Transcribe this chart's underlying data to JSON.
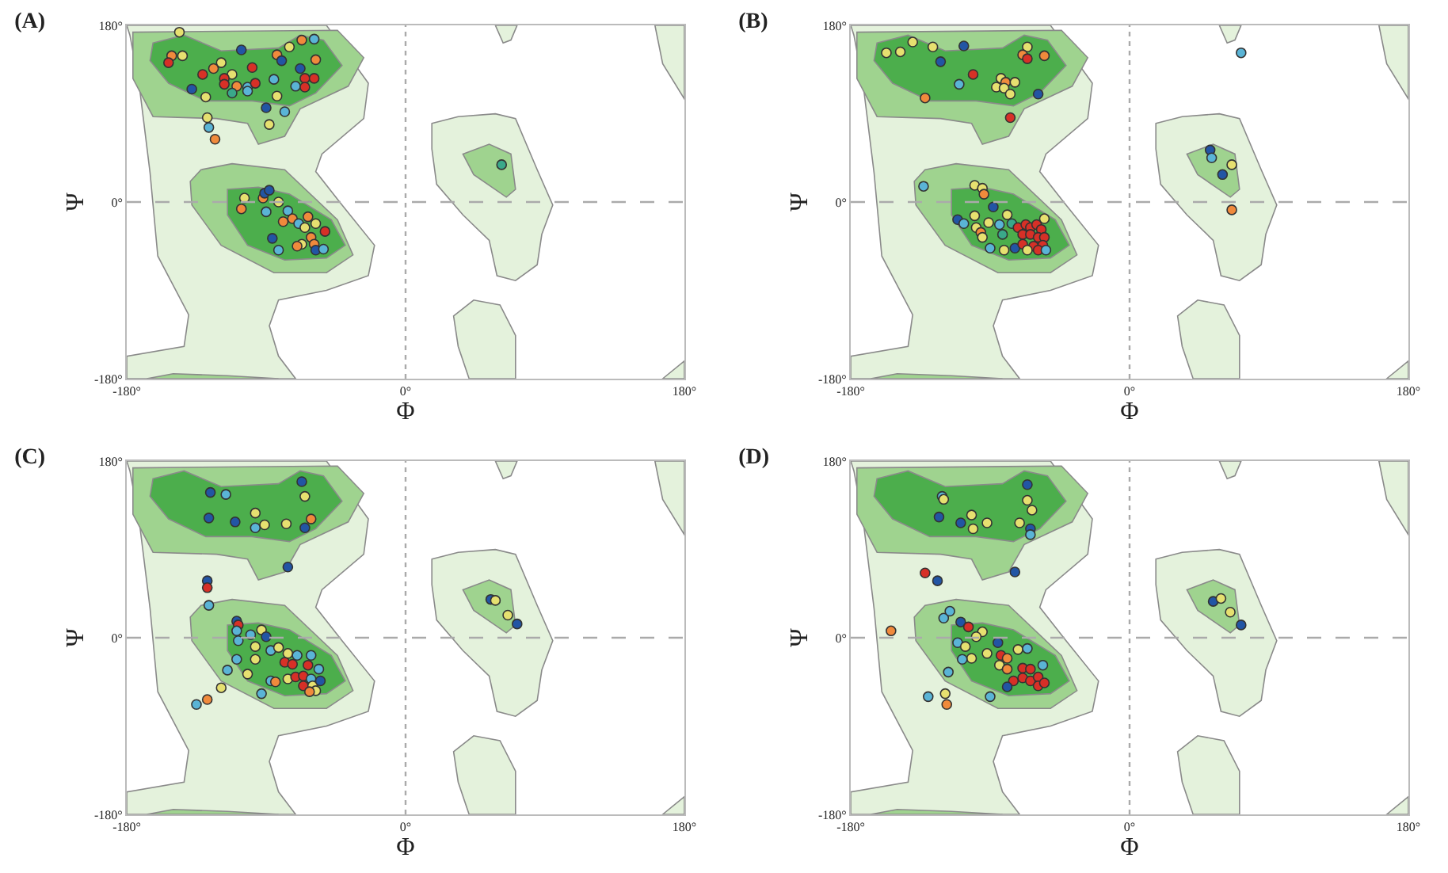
{
  "chart_data": [
    {
      "type": "scatter",
      "title": "(A)",
      "xlabel": "Φ",
      "ylabel": "Ψ",
      "marker": "circle",
      "xlim": [
        -180,
        180
      ],
      "ylim": [
        -180,
        180
      ],
      "xticks": [
        {
          "value": -180,
          "label": "-180°"
        },
        {
          "value": 0,
          "label": "0°"
        },
        {
          "value": 180,
          "label": "180°"
        }
      ],
      "yticks": [
        {
          "value": -180,
          "label": "-180°"
        },
        {
          "value": 0,
          "label": "0°"
        },
        {
          "value": 180,
          "label": "180°"
        }
      ],
      "ref_lines": [
        {
          "axis": "x",
          "value": 0,
          "line_style": "dotted",
          "color": "#aaaaaa"
        },
        {
          "axis": "y",
          "value": 0,
          "line_style": "dashed",
          "color": "#aaaaaa"
        }
      ],
      "x": [
        -146,
        -151,
        -144,
        -153,
        -106,
        -83,
        -80,
        -67,
        -59,
        -75,
        -58,
        -99,
        -119,
        -124,
        -131,
        -112,
        -117,
        -117,
        -109,
        -102,
        -97,
        -112,
        -102,
        -138,
        -129,
        -85,
        -68,
        -65,
        -59,
        -71,
        -65,
        -83,
        -90,
        -78,
        -128,
        -127,
        -123,
        -88,
        62,
        -104,
        -106,
        -92,
        -91,
        -88,
        -90,
        -82,
        -76,
        -79,
        -73,
        -69,
        -63,
        -58,
        -52,
        -65,
        -61,
        -67,
        -59,
        -58,
        -53,
        -86,
        -82,
        -70
      ],
      "values": [
        173,
        149,
        149,
        142,
        155,
        150,
        144,
        165,
        166,
        158,
        145,
        137,
        142,
        136,
        130,
        130,
        126,
        120,
        118,
        117,
        121,
        111,
        113,
        115,
        107,
        125,
        136,
        126,
        126,
        118,
        117,
        108,
        96,
        92,
        86,
        76,
        64,
        79,
        38,
        4,
        -7,
        4,
        9,
        12,
        -10,
        0,
        -9,
        -20,
        -17,
        -22,
        -15,
        -22,
        -30,
        -26,
        -36,
        -43,
        -43,
        -49,
        -48,
        -37,
        -49,
        -45
      ],
      "colors": [
        "#e6e070",
        "#f08a3c",
        "#e6e070",
        "#d73027",
        "#2255a4",
        "#f08a3c",
        "#2255a4",
        "#f08a3c",
        "#5ab4d6",
        "#e6e070",
        "#f08a3c",
        "#d73027",
        "#e6e070",
        "#f08a3c",
        "#d73027",
        "#e6e070",
        "#d73027",
        "#d73027",
        "#f08a3c",
        "#5ab4d6",
        "#d73027",
        "#3aa88a",
        "#5ab4d6",
        "#2255a4",
        "#e6e070",
        "#5ab4d6",
        "#2255a4",
        "#d73027",
        "#d73027",
        "#5ab4d6",
        "#d73027",
        "#e6e070",
        "#2255a4",
        "#5ab4d6",
        "#e6e070",
        "#5ab4d6",
        "#f08a3c",
        "#e6e070",
        "#3aa88a",
        "#e6e070",
        "#f08a3c",
        "#f08a3c",
        "#2255a4",
        "#2255a4",
        "#5ab4d6",
        "#e6e070",
        "#5ab4d6",
        "#f08a3c",
        "#f08a3c",
        "#5ab4d6",
        "#f08a3c",
        "#e6e070",
        "#d73027",
        "#e6e070",
        "#f08a3c",
        "#e6e070",
        "#f08a3c",
        "#2255a4",
        "#5ab4d6",
        "#2255a4",
        "#5ab4d6",
        "#f08a3c"
      ]
    },
    {
      "type": "scatter",
      "title": "(B)",
      "xlabel": "Φ",
      "ylabel": "Ψ",
      "marker": "circle",
      "xlim": [
        -180,
        180
      ],
      "ylim": [
        -180,
        180
      ],
      "xticks": [
        {
          "value": -180,
          "label": "-180°"
        },
        {
          "value": 0,
          "label": "0°"
        },
        {
          "value": 180,
          "label": "180°"
        }
      ],
      "yticks": [
        {
          "value": -180,
          "label": "-180°"
        },
        {
          "value": 0,
          "label": "0°"
        },
        {
          "value": 180,
          "label": "180°"
        }
      ],
      "ref_lines": [
        {
          "axis": "x",
          "value": 0,
          "line_style": "dotted",
          "color": "#aaaaaa"
        },
        {
          "axis": "y",
          "value": 0,
          "line_style": "dashed",
          "color": "#aaaaaa"
        }
      ],
      "x": [
        -157,
        -148,
        -140,
        -127,
        -107,
        -122,
        -101,
        -110,
        -132,
        -66,
        -69,
        -66,
        -55,
        -83,
        -80,
        -74,
        -86,
        -81,
        -77,
        -59,
        -77,
        72,
        52,
        53,
        66,
        60,
        66,
        -133,
        -100,
        -95,
        -94,
        -88,
        -111,
        -107,
        -100,
        -99,
        -91,
        -84,
        -79,
        -76,
        -96,
        -95,
        -90,
        -82,
        -81,
        -74,
        -72,
        -67,
        -64,
        -60,
        -57,
        -69,
        -64,
        -59,
        -55,
        -69,
        -62,
        -56,
        -59,
        -54,
        -66,
        -55
      ],
      "values": [
        152,
        153,
        163,
        158,
        159,
        143,
        130,
        120,
        106,
        158,
        150,
        146,
        149,
        126,
        122,
        122,
        117,
        116,
        110,
        110,
        86,
        152,
        53,
        45,
        38,
        28,
        -8,
        16,
        17,
        14,
        8,
        -5,
        -18,
        -22,
        -14,
        -26,
        -21,
        -23,
        -13,
        -22,
        -31,
        -36,
        -47,
        -33,
        -49,
        -47,
        -26,
        -23,
        -26,
        -23,
        -28,
        -33,
        -33,
        -36,
        -36,
        -43,
        -45,
        -44,
        -49,
        -49,
        -49,
        -17
      ],
      "colors": [
        "#e6e070",
        "#e6e070",
        "#e6e070",
        "#e6e070",
        "#2255a4",
        "#2255a4",
        "#d73027",
        "#5ab4d6",
        "#f08a3c",
        "#e6e070",
        "#f08a3c",
        "#d73027",
        "#f08a3c",
        "#e6e070",
        "#f08a3c",
        "#e6e070",
        "#e6e070",
        "#e6e070",
        "#e6e070",
        "#2255a4",
        "#d73027",
        "#5ab4d6",
        "#2255a4",
        "#5ab4d6",
        "#e6e070",
        "#2255a4",
        "#f08a3c",
        "#5ab4d6",
        "#e6e070",
        "#e6e070",
        "#f08a3c",
        "#2255a4",
        "#2255a4",
        "#5ab4d6",
        "#e6e070",
        "#e6e070",
        "#e6e070",
        "#5ab4d6",
        "#e6e070",
        "#3aa88a",
        "#f08a3c",
        "#e6e070",
        "#5ab4d6",
        "#3aa88a",
        "#e6e070",
        "#2255a4",
        "#d73027",
        "#d73027",
        "#d73027",
        "#d73027",
        "#d73027",
        "#d73027",
        "#d73027",
        "#d73027",
        "#d73027",
        "#d73027",
        "#d73027",
        "#d73027",
        "#d73027",
        "#5ab4d6",
        "#e6e070",
        "#e6e070"
      ]
    },
    {
      "type": "scatter",
      "title": "(C)",
      "xlabel": "Φ",
      "ylabel": "Ψ",
      "marker": "circle",
      "xlim": [
        -180,
        180
      ],
      "ylim": [
        -180,
        180
      ],
      "xticks": [
        {
          "value": -180,
          "label": "-180°"
        },
        {
          "value": 0,
          "label": "0°"
        },
        {
          "value": 180,
          "label": "180°"
        }
      ],
      "yticks": [
        {
          "value": -180,
          "label": "-180°"
        },
        {
          "value": 0,
          "label": "0°"
        },
        {
          "value": 180,
          "label": "180°"
        }
      ],
      "ref_lines": [
        {
          "axis": "x",
          "value": 0,
          "line_style": "dotted",
          "color": "#aaaaaa"
        },
        {
          "axis": "y",
          "value": 0,
          "line_style": "dashed",
          "color": "#aaaaaa"
        }
      ],
      "x": [
        -67,
        -126,
        -116,
        -65,
        -127,
        -110,
        -97,
        -97,
        -91,
        -77,
        -65,
        -61,
        -76,
        -128,
        -128,
        -127,
        55,
        58,
        66,
        72,
        -109,
        -108,
        -109,
        -100,
        -93,
        -90,
        -108,
        -97,
        -87,
        -82,
        -76,
        -70,
        -61,
        -109,
        -97,
        -78,
        -73,
        -63,
        -56,
        -115,
        -102,
        -87,
        -84,
        -76,
        -71,
        -66,
        -61,
        -66,
        -60,
        -55,
        -58,
        -62,
        -93,
        -119,
        -135,
        -128
      ],
      "values": [
        159,
        148,
        146,
        144,
        122,
        118,
        127,
        112,
        115,
        116,
        112,
        121,
        72,
        58,
        51,
        33,
        39,
        38,
        23,
        14,
        17,
        13,
        7,
        3,
        8,
        1,
        -3,
        -9,
        -13,
        -10,
        -16,
        -18,
        -18,
        -22,
        -22,
        -25,
        -27,
        -28,
        -32,
        -33,
        -37,
        -44,
        -45,
        -42,
        -40,
        -39,
        -42,
        -49,
        -49,
        -44,
        -54,
        -55,
        -57,
        -51,
        -68,
        -63
      ],
      "colors": [
        "#2255a4",
        "#2255a4",
        "#5ab4d6",
        "#e6e070",
        "#2255a4",
        "#2255a4",
        "#e6e070",
        "#5ab4d6",
        "#e6e070",
        "#e6e070",
        "#2255a4",
        "#f08a3c",
        "#2255a4",
        "#2255a4",
        "#d73027",
        "#5ab4d6",
        "#2255a4",
        "#e6e070",
        "#e6e070",
        "#2255a4",
        "#2255a4",
        "#d73027",
        "#5ab4d6",
        "#5ab4d6",
        "#e6e070",
        "#2255a4",
        "#5ab4d6",
        "#e6e070",
        "#5ab4d6",
        "#e6e070",
        "#e6e070",
        "#5ab4d6",
        "#5ab4d6",
        "#5ab4d6",
        "#e6e070",
        "#d73027",
        "#d73027",
        "#d73027",
        "#5ab4d6",
        "#5ab4d6",
        "#e6e070",
        "#5ab4d6",
        "#f08a3c",
        "#e6e070",
        "#d73027",
        "#d73027",
        "#5ab4d6",
        "#d73027",
        "#e6e070",
        "#2255a4",
        "#e6e070",
        "#f08a3c",
        "#5ab4d6",
        "#e6e070",
        "#5ab4d6",
        "#f08a3c"
      ]
    },
    {
      "type": "scatter",
      "title": "(D)",
      "xlabel": "Φ",
      "ylabel": "Ψ",
      "marker": "circle",
      "xlim": [
        -180,
        180
      ],
      "ylim": [
        -180,
        180
      ],
      "xticks": [
        {
          "value": -180,
          "label": "-180°"
        },
        {
          "value": 0,
          "label": "0°"
        },
        {
          "value": 180,
          "label": "180°"
        }
      ],
      "yticks": [
        {
          "value": -180,
          "label": "-180°"
        },
        {
          "value": 0,
          "label": "0°"
        },
        {
          "value": 180,
          "label": "180°"
        }
      ],
      "ref_lines": [
        {
          "axis": "x",
          "value": 0,
          "line_style": "dotted",
          "color": "#aaaaaa"
        },
        {
          "axis": "y",
          "value": 0,
          "line_style": "dashed",
          "color": "#aaaaaa"
        }
      ],
      "x": [
        -66,
        -121,
        -120,
        -66,
        -63,
        -123,
        -109,
        -102,
        -101,
        -92,
        -71,
        -64,
        -64,
        -132,
        -124,
        -74,
        -154,
        54,
        59,
        65,
        72,
        -120,
        -116,
        -109,
        -104,
        -95,
        -99,
        -111,
        -106,
        -102,
        -108,
        -85,
        -92,
        -83,
        -79,
        -72,
        -66,
        -84,
        -79,
        -69,
        -64,
        -56,
        -75,
        -69,
        -64,
        -59,
        -59,
        -55,
        -79,
        -90,
        -117,
        -130,
        -119,
        -118
      ],
      "values": [
        156,
        144,
        141,
        140,
        130,
        123,
        117,
        125,
        111,
        117,
        117,
        111,
        105,
        66,
        58,
        67,
        7,
        37,
        40,
        26,
        13,
        20,
        27,
        16,
        11,
        6,
        1,
        -5,
        -9,
        -21,
        -22,
        -5,
        -16,
        -18,
        -21,
        -12,
        -11,
        -28,
        -32,
        -31,
        -32,
        -28,
        -44,
        -41,
        -44,
        -40,
        -49,
        -46,
        -50,
        -60,
        -35,
        -60,
        -57,
        -68
      ],
      "colors": [
        "#2255a4",
        "#5ab4d6",
        "#e6e070",
        "#e6e070",
        "#e6e070",
        "#2255a4",
        "#2255a4",
        "#e6e070",
        "#e6e070",
        "#e6e070",
        "#e6e070",
        "#2255a4",
        "#5ab4d6",
        "#d73027",
        "#2255a4",
        "#2255a4",
        "#f08a3c",
        "#2255a4",
        "#e6e070",
        "#e6e070",
        "#2255a4",
        "#5ab4d6",
        "#5ab4d6",
        "#2255a4",
        "#d73027",
        "#e6e070",
        "#e6e070",
        "#5ab4d6",
        "#e6e070",
        "#e6e070",
        "#5ab4d6",
        "#2255a4",
        "#e6e070",
        "#d73027",
        "#f08a3c",
        "#e6e070",
        "#5ab4d6",
        "#e6e070",
        "#f08a3c",
        "#d73027",
        "#d73027",
        "#5ab4d6",
        "#d73027",
        "#d73027",
        "#d73027",
        "#d73027",
        "#d73027",
        "#d73027",
        "#2255a4",
        "#5ab4d6",
        "#5ab4d6",
        "#5ab4d6",
        "#e6e070",
        "#f08a3c"
      ]
    }
  ]
}
